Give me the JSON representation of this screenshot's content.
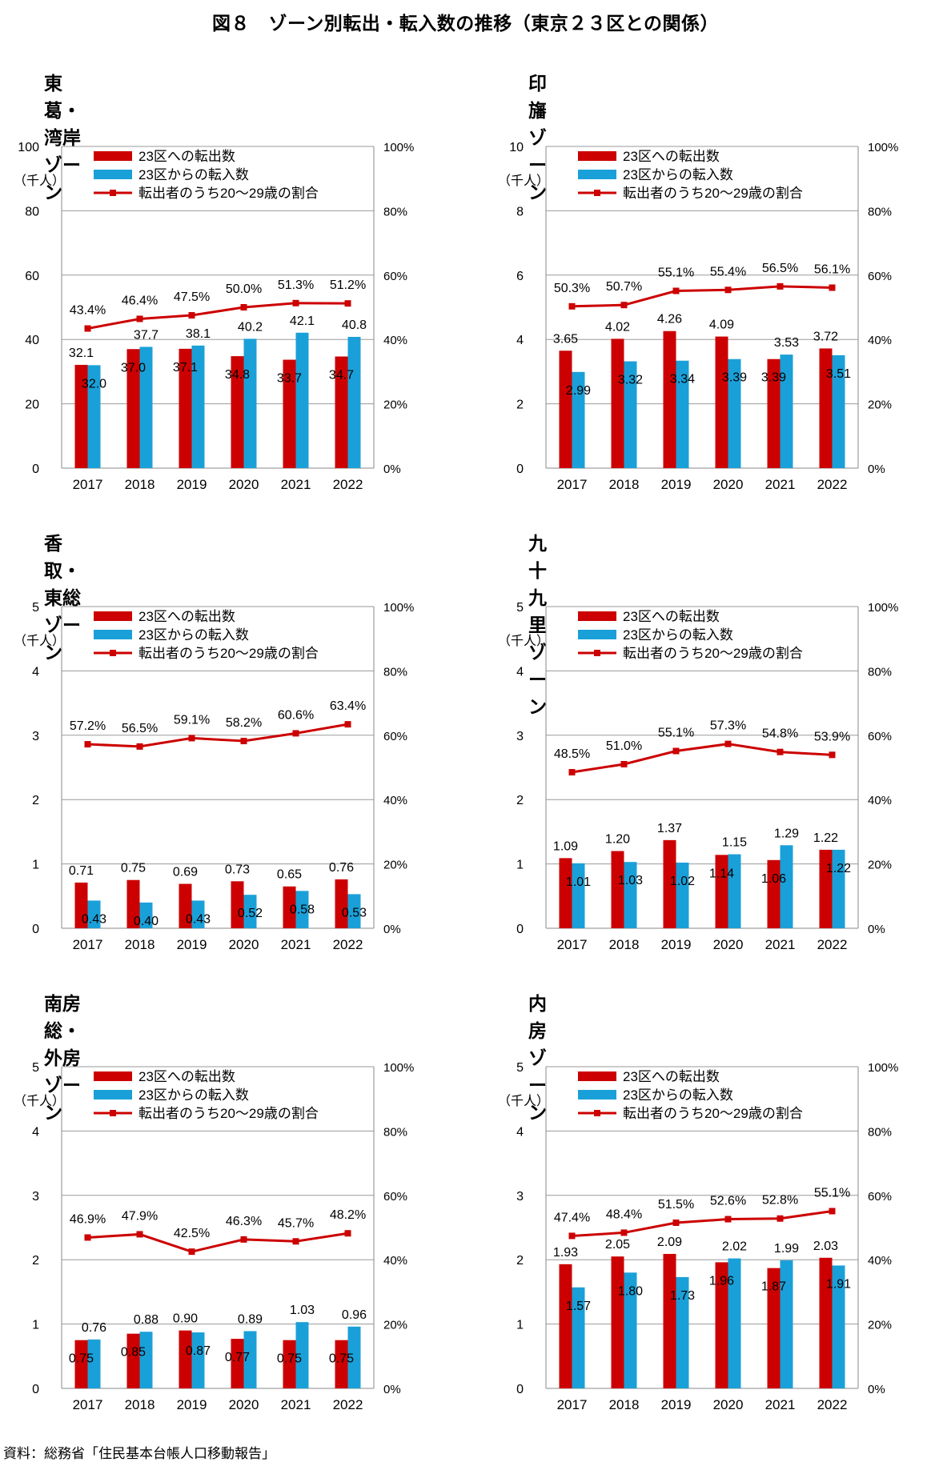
{
  "page_title": "図８　ゾーン別転出・転入数の推移（東京２３区との関係）",
  "source": "資料：総務省「住民基本台帳人口移動報告」",
  "colors": {
    "outflow": "#cc0000",
    "inflow": "#1aa0d8",
    "share": "#cc0000",
    "grid": "#9a9a9a",
    "axis": "#888888"
  },
  "chart_data": [
    {
      "title": "東葛・湾岸ゾーン",
      "type": "bar+line",
      "unit_label": "（千人）",
      "categories": [
        "2017",
        "2018",
        "2019",
        "2020",
        "2021",
        "2022"
      ],
      "ylim": [
        0,
        100
      ],
      "y_ticks": [
        "0",
        "20",
        "40",
        "60",
        "80",
        "100"
      ],
      "y2lim": [
        0,
        100
      ],
      "y2_ticks": [
        "0%",
        "20%",
        "40%",
        "60%",
        "80%",
        "100%"
      ],
      "legend": [
        "23区への転出数",
        "23区からの転入数",
        "転出者のうち20～29歳の割合"
      ],
      "series": [
        {
          "name": "23区への転出数",
          "values": [
            32.1,
            37.0,
            37.1,
            34.8,
            33.7,
            34.7
          ],
          "labels": [
            "32.1",
            "37.0",
            "37.1",
            "34.8",
            "33.7",
            "34.7"
          ]
        },
        {
          "name": "23区からの転入数",
          "values": [
            32.0,
            37.7,
            38.1,
            40.2,
            42.1,
            40.8
          ],
          "labels": [
            "32.0",
            "37.7",
            "38.1",
            "40.2",
            "42.1",
            "40.8"
          ]
        },
        {
          "name": "転出者のうち20～29歳の割合",
          "values": [
            43.4,
            46.4,
            47.5,
            50.0,
            51.3,
            51.2
          ],
          "labels": [
            "43.4%",
            "46.4%",
            "47.5%",
            "50.0%",
            "51.3%",
            "51.2%"
          ]
        }
      ]
    },
    {
      "title": "印旛ゾーン",
      "type": "bar+line",
      "unit_label": "（千人）",
      "categories": [
        "2017",
        "2018",
        "2019",
        "2020",
        "2021",
        "2022"
      ],
      "ylim": [
        0,
        10
      ],
      "y_ticks": [
        "0",
        "2",
        "4",
        "6",
        "8",
        "10"
      ],
      "y2lim": [
        0,
        100
      ],
      "y2_ticks": [
        "0%",
        "20%",
        "40%",
        "60%",
        "80%",
        "100%"
      ],
      "legend": [
        "23区への転出数",
        "23区からの転入数",
        "転出者のうち20～29歳の割合"
      ],
      "series": [
        {
          "name": "23区への転出数",
          "values": [
            3.65,
            4.02,
            4.26,
            4.09,
            3.39,
            3.72
          ],
          "labels": [
            "3.65",
            "4.02",
            "4.26",
            "4.09",
            "3.39",
            "3.72"
          ]
        },
        {
          "name": "23区からの転入数",
          "values": [
            2.99,
            3.32,
            3.34,
            3.39,
            3.53,
            3.51
          ],
          "labels": [
            "2.99",
            "3.32",
            "3.34",
            "3.39",
            "3.53",
            "3.51"
          ]
        },
        {
          "name": "転出者のうち20～29歳の割合",
          "values": [
            50.3,
            50.7,
            55.1,
            55.4,
            56.5,
            56.1
          ],
          "labels": [
            "50.3%",
            "50.7%",
            "55.1%",
            "55.4%",
            "56.5%",
            "56.1%"
          ]
        }
      ]
    },
    {
      "title": "香取・東総ゾーン",
      "type": "bar+line",
      "unit_label": "（千人）",
      "categories": [
        "2017",
        "2018",
        "2019",
        "2020",
        "2021",
        "2022"
      ],
      "ylim": [
        0,
        5
      ],
      "y_ticks": [
        "0",
        "1",
        "2",
        "3",
        "4",
        "5"
      ],
      "y2lim": [
        0,
        100
      ],
      "y2_ticks": [
        "0%",
        "20%",
        "40%",
        "60%",
        "80%",
        "100%"
      ],
      "legend": [
        "23区への転出数",
        "23区からの転入数",
        "転出者のうち20～29歳の割合"
      ],
      "series": [
        {
          "name": "23区への転出数",
          "values": [
            0.71,
            0.75,
            0.69,
            0.73,
            0.65,
            0.76
          ],
          "labels": [
            "0.71",
            "0.75",
            "0.69",
            "0.73",
            "0.65",
            "0.76"
          ]
        },
        {
          "name": "23区からの転入数",
          "values": [
            0.43,
            0.4,
            0.43,
            0.52,
            0.58,
            0.53
          ],
          "labels": [
            "0.43",
            "0.40",
            "0.43",
            "0.52",
            "0.58",
            "0.53"
          ]
        },
        {
          "name": "転出者のうち20～29歳の割合",
          "values": [
            57.2,
            56.5,
            59.1,
            58.2,
            60.6,
            63.4
          ],
          "labels": [
            "57.2%",
            "56.5%",
            "59.1%",
            "58.2%",
            "60.6%",
            "63.4%"
          ]
        }
      ]
    },
    {
      "title": "九十九里ゾーン",
      "type": "bar+line",
      "unit_label": "（千人）",
      "categories": [
        "2017",
        "2018",
        "2019",
        "2020",
        "2021",
        "2022"
      ],
      "ylim": [
        0,
        5
      ],
      "y_ticks": [
        "0",
        "1",
        "2",
        "3",
        "4",
        "5"
      ],
      "y2lim": [
        0,
        100
      ],
      "y2_ticks": [
        "0%",
        "20%",
        "40%",
        "60%",
        "80%",
        "100%"
      ],
      "legend": [
        "23区への転出数",
        "23区からの転入数",
        "転出者のうち20～29歳の割合"
      ],
      "series": [
        {
          "name": "23区への転出数",
          "values": [
            1.09,
            1.2,
            1.37,
            1.14,
            1.06,
            1.22
          ],
          "labels": [
            "1.09",
            "1.20",
            "1.37",
            "1.14",
            "1.06",
            "1.22"
          ]
        },
        {
          "name": "23区からの転入数",
          "values": [
            1.01,
            1.03,
            1.02,
            1.15,
            1.29,
            1.22
          ],
          "labels": [
            "1.01",
            "1.03",
            "1.02",
            "1.15",
            "1.29",
            "1.22"
          ]
        },
        {
          "name": "転出者のうち20～29歳の割合",
          "values": [
            48.5,
            51.0,
            55.1,
            57.3,
            54.8,
            53.9
          ],
          "labels": [
            "48.5%",
            "51.0%",
            "55.1%",
            "57.3%",
            "54.8%",
            "53.9%"
          ]
        }
      ]
    },
    {
      "title": "南房総・外房ゾーン",
      "type": "bar+line",
      "unit_label": "（千人）",
      "categories": [
        "2017",
        "2018",
        "2019",
        "2020",
        "2021",
        "2022"
      ],
      "ylim": [
        0,
        5
      ],
      "y_ticks": [
        "0",
        "1",
        "2",
        "3",
        "4",
        "5"
      ],
      "y2lim": [
        0,
        100
      ],
      "y2_ticks": [
        "0%",
        "20%",
        "40%",
        "60%",
        "80%",
        "100%"
      ],
      "legend": [
        "23区への転出数",
        "23区からの転入数",
        "転出者のうち20～29歳の割合"
      ],
      "series": [
        {
          "name": "23区への転出数",
          "values": [
            0.75,
            0.85,
            0.9,
            0.77,
            0.75,
            0.75
          ],
          "labels": [
            "0.75",
            "0.85",
            "0.90",
            "0.77",
            "0.75",
            "0.75"
          ]
        },
        {
          "name": "23区からの転入数",
          "values": [
            0.76,
            0.88,
            0.87,
            0.89,
            1.03,
            0.96
          ],
          "labels": [
            "0.76",
            "0.88",
            "0.87",
            "0.89",
            "1.03",
            "0.96"
          ]
        },
        {
          "name": "転出者のうち20～29歳の割合",
          "values": [
            46.9,
            47.9,
            42.5,
            46.3,
            45.7,
            48.2
          ],
          "labels": [
            "46.9%",
            "47.9%",
            "42.5%",
            "46.3%",
            "45.7%",
            "48.2%"
          ]
        }
      ]
    },
    {
      "title": "内房ゾーン",
      "type": "bar+line",
      "unit_label": "（千人）",
      "categories": [
        "2017",
        "2018",
        "2019",
        "2020",
        "2021",
        "2022"
      ],
      "ylim": [
        0,
        5
      ],
      "y_ticks": [
        "0",
        "1",
        "2",
        "3",
        "4",
        "5"
      ],
      "y2lim": [
        0,
        100
      ],
      "y2_ticks": [
        "0%",
        "20%",
        "40%",
        "60%",
        "80%",
        "100%"
      ],
      "legend": [
        "23区への転出数",
        "23区からの転入数",
        "転出者のうち20～29歳の割合"
      ],
      "series": [
        {
          "name": "23区への転出数",
          "values": [
            1.93,
            2.05,
            2.09,
            1.96,
            1.87,
            2.03
          ],
          "labels": [
            "1.93",
            "2.05",
            "2.09",
            "1.96",
            "1.87",
            "2.03"
          ]
        },
        {
          "name": "23区からの転入数",
          "values": [
            1.57,
            1.8,
            1.73,
            2.02,
            1.99,
            1.91
          ],
          "labels": [
            "1.57",
            "1.80",
            "1.73",
            "2.02",
            "1.99",
            "1.91"
          ]
        },
        {
          "name": "転出者のうち20～29歳の割合",
          "values": [
            47.4,
            48.4,
            51.5,
            52.6,
            52.8,
            55.1
          ],
          "labels": [
            "47.4%",
            "48.4%",
            "51.5%",
            "52.6%",
            "52.8%",
            "55.1%"
          ]
        }
      ]
    }
  ]
}
